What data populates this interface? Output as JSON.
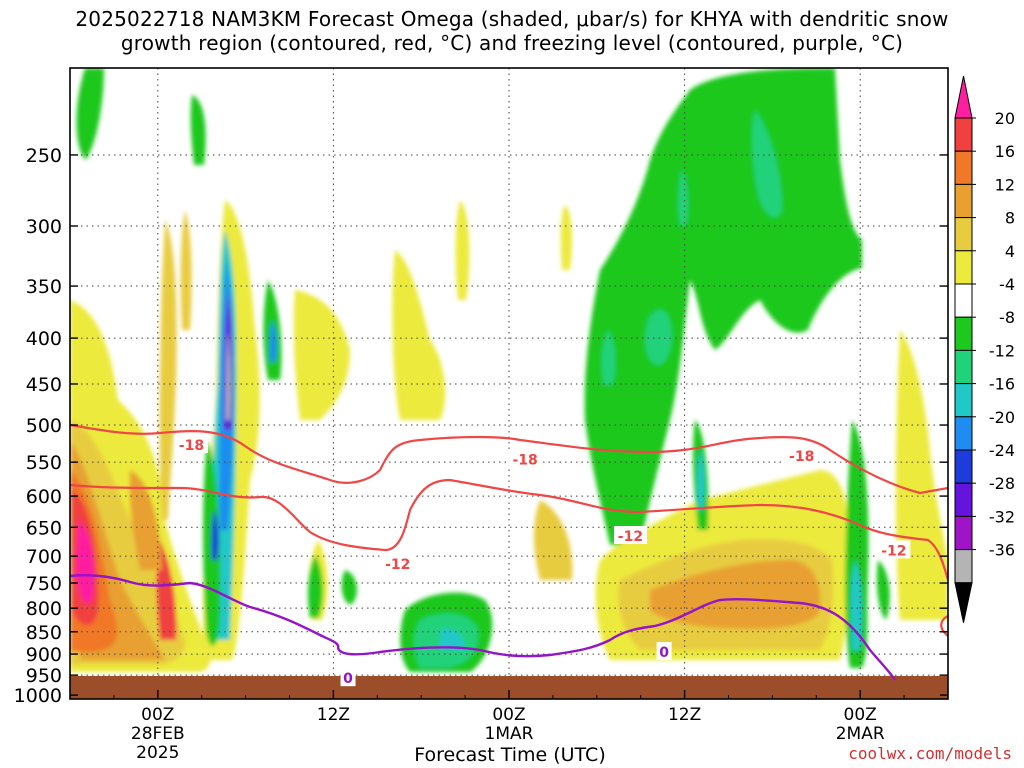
{
  "title_line1": "2025022718 NAM3KM Forecast Omega (shaded, μbar/s) for KHYA with dendritic snow",
  "title_line2": "growth region (contoured, red, °C) and freezing level (contoured, purple, °C)",
  "xlabel": "Forecast Time (UTC)",
  "credit": "coolwx.com/models",
  "chart_data": {
    "type": "heatmap",
    "title": "2025022718 NAM3KM Forecast Omega (shaded, μbar/s) for KHYA with dendritic snow growth region (contoured, red, °C) and freezing level (contoured, purple, °C)",
    "xlabel": "Forecast Time (UTC)",
    "ylabel": "",
    "y_ticks": [
      250,
      300,
      350,
      400,
      450,
      500,
      550,
      600,
      650,
      700,
      750,
      800,
      850,
      900,
      950,
      1000
    ],
    "x_ticks": [
      {
        "hour": 6,
        "lines": [
          "00Z",
          "28FEB",
          "2025"
        ]
      },
      {
        "hour": 18,
        "lines": [
          "12Z"
        ]
      },
      {
        "hour": 30,
        "lines": [
          "00Z",
          "1MAR"
        ]
      },
      {
        "hour": 42,
        "lines": [
          "12Z"
        ]
      },
      {
        "hour": 54,
        "lines": [
          "00Z",
          "2MAR"
        ]
      }
    ],
    "xlim_hours": [
      0,
      60
    ],
    "ylim_hpa": [
      200,
      1010
    ],
    "grid": true,
    "colorbar": {
      "labels": [
        "20",
        "16",
        "12",
        "8",
        "4",
        "-4",
        "-8",
        "-12",
        "-16",
        "-20",
        "-24",
        "-28",
        "-32",
        "-36"
      ],
      "colors": [
        "#ff1ea0",
        "#f04040",
        "#f07828",
        "#e8a030",
        "#e8cc40",
        "#ecea3c",
        "#ffffff",
        "#1ec81e",
        "#20d27a",
        "#20c8c8",
        "#1e8cf0",
        "#1e3cdc",
        "#6414dc",
        "#a014c8",
        "#b4b4b4",
        "#000000"
      ]
    },
    "contours": [
      {
        "label": "-18",
        "color": "#f04646",
        "kind": "dendritic snow growth region"
      },
      {
        "label": "-12",
        "color": "#f04646",
        "kind": "dendritic snow growth region"
      },
      {
        "label": "0",
        "color": "#9614c8",
        "kind": "freezing level"
      }
    ],
    "contour_labels": [
      {
        "text": "-18",
        "hour": 8.3,
        "hpa": 525
      },
      {
        "text": "-18",
        "hour": 31.1,
        "hpa": 545
      },
      {
        "text": "-18",
        "hour": 50.0,
        "hpa": 540
      },
      {
        "text": "-12",
        "hour": 22.4,
        "hpa": 712
      },
      {
        "text": "-12",
        "hour": 38.3,
        "hpa": 663
      },
      {
        "text": "-12",
        "hour": 56.3,
        "hpa": 688
      },
      {
        "text": "0",
        "hour": 19.0,
        "hpa": 955
      },
      {
        "text": "0",
        "hour": 40.6,
        "hpa": 893
      }
    ]
  }
}
